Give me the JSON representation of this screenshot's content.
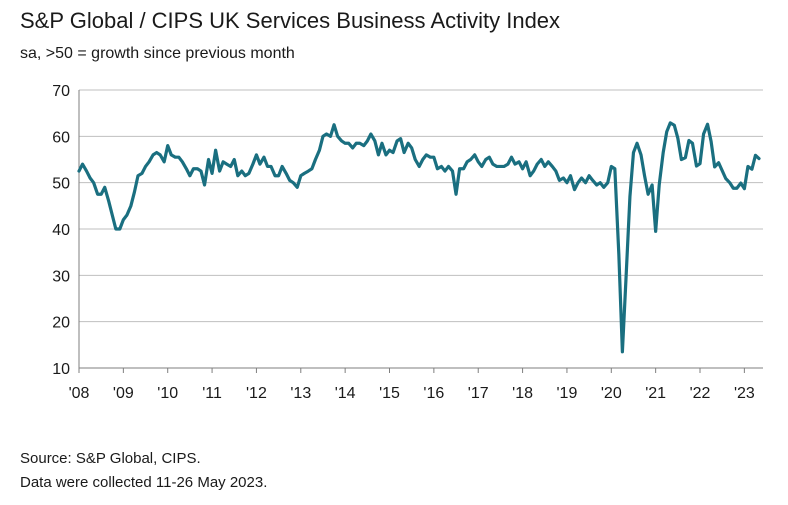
{
  "chart_data": {
    "type": "line",
    "title": "S&P Global / CIPS UK Services Business Activity Index",
    "subtitle": "sa, >50 = growth since previous month",
    "xlabel": "",
    "ylabel": "",
    "ylim": [
      10,
      70
    ],
    "yticks": [
      10,
      20,
      30,
      40,
      50,
      60,
      70
    ],
    "xlim": [
      2008.0,
      2023.42
    ],
    "xticks": [
      {
        "label": "'08",
        "value": 2008
      },
      {
        "label": "'09",
        "value": 2009
      },
      {
        "label": "'10",
        "value": 2010
      },
      {
        "label": "'11",
        "value": 2011
      },
      {
        "label": "'12",
        "value": 2012
      },
      {
        "label": "'13",
        "value": 2013
      },
      {
        "label": "'14",
        "value": 2014
      },
      {
        "label": "'15",
        "value": 2015
      },
      {
        "label": "'16",
        "value": 2016
      },
      {
        "label": "'17",
        "value": 2017
      },
      {
        "label": "'18",
        "value": 2018
      },
      {
        "label": "'19",
        "value": 2019
      },
      {
        "label": "'20",
        "value": 2020
      },
      {
        "label": "'21",
        "value": 2021
      },
      {
        "label": "'22",
        "value": 2022
      },
      {
        "label": "'23",
        "value": 2023
      }
    ],
    "grid": true,
    "series": [
      {
        "name": "UK Services Business Activity Index",
        "color": "#1a6f80",
        "points": [
          [
            2008.0,
            52.5
          ],
          [
            2008.08,
            54.0
          ],
          [
            2008.17,
            52.5
          ],
          [
            2008.25,
            51.0
          ],
          [
            2008.33,
            50.0
          ],
          [
            2008.42,
            47.5
          ],
          [
            2008.5,
            47.5
          ],
          [
            2008.58,
            49.0
          ],
          [
            2008.67,
            46.0
          ],
          [
            2008.75,
            43.0
          ],
          [
            2008.83,
            40.0
          ],
          [
            2008.92,
            40.0
          ],
          [
            2009.0,
            42.0
          ],
          [
            2009.08,
            43.0
          ],
          [
            2009.17,
            45.0
          ],
          [
            2009.25,
            48.0
          ],
          [
            2009.33,
            51.5
          ],
          [
            2009.42,
            52.0
          ],
          [
            2009.5,
            53.5
          ],
          [
            2009.58,
            54.5
          ],
          [
            2009.67,
            56.0
          ],
          [
            2009.75,
            56.5
          ],
          [
            2009.83,
            56.0
          ],
          [
            2009.92,
            54.5
          ],
          [
            2010.0,
            58.0
          ],
          [
            2010.08,
            56.0
          ],
          [
            2010.17,
            55.5
          ],
          [
            2010.25,
            55.5
          ],
          [
            2010.33,
            54.5
          ],
          [
            2010.42,
            53.0
          ],
          [
            2010.5,
            51.5
          ],
          [
            2010.58,
            53.0
          ],
          [
            2010.67,
            53.0
          ],
          [
            2010.75,
            52.5
          ],
          [
            2010.83,
            49.5
          ],
          [
            2010.92,
            55.0
          ],
          [
            2011.0,
            52.0
          ],
          [
            2011.08,
            57.0
          ],
          [
            2011.17,
            52.5
          ],
          [
            2011.25,
            54.5
          ],
          [
            2011.33,
            54.0
          ],
          [
            2011.42,
            53.5
          ],
          [
            2011.5,
            55.0
          ],
          [
            2011.58,
            51.5
          ],
          [
            2011.67,
            52.5
          ],
          [
            2011.75,
            51.5
          ],
          [
            2011.83,
            52.0
          ],
          [
            2011.92,
            54.0
          ],
          [
            2012.0,
            56.0
          ],
          [
            2012.08,
            54.0
          ],
          [
            2012.17,
            55.5
          ],
          [
            2012.25,
            53.5
          ],
          [
            2012.33,
            53.5
          ],
          [
            2012.42,
            51.5
          ],
          [
            2012.5,
            51.5
          ],
          [
            2012.58,
            53.5
          ],
          [
            2012.67,
            52.0
          ],
          [
            2012.75,
            50.5
          ],
          [
            2012.83,
            50.0
          ],
          [
            2012.92,
            49.0
          ],
          [
            2013.0,
            51.5
          ],
          [
            2013.08,
            52.0
          ],
          [
            2013.17,
            52.5
          ],
          [
            2013.25,
            53.0
          ],
          [
            2013.33,
            55.0
          ],
          [
            2013.42,
            57.0
          ],
          [
            2013.5,
            60.0
          ],
          [
            2013.58,
            60.5
          ],
          [
            2013.67,
            60.0
          ],
          [
            2013.75,
            62.5
          ],
          [
            2013.83,
            60.0
          ],
          [
            2013.92,
            59.0
          ],
          [
            2014.0,
            58.5
          ],
          [
            2014.08,
            58.5
          ],
          [
            2014.17,
            57.5
          ],
          [
            2014.25,
            58.5
          ],
          [
            2014.33,
            58.5
          ],
          [
            2014.42,
            58.0
          ],
          [
            2014.5,
            59.0
          ],
          [
            2014.58,
            60.5
          ],
          [
            2014.67,
            59.0
          ],
          [
            2014.75,
            56.0
          ],
          [
            2014.83,
            58.5
          ],
          [
            2014.92,
            56.0
          ],
          [
            2015.0,
            57.0
          ],
          [
            2015.08,
            56.5
          ],
          [
            2015.17,
            59.0
          ],
          [
            2015.25,
            59.5
          ],
          [
            2015.33,
            56.5
          ],
          [
            2015.42,
            58.5
          ],
          [
            2015.5,
            57.5
          ],
          [
            2015.58,
            55.0
          ],
          [
            2015.67,
            53.5
          ],
          [
            2015.75,
            55.0
          ],
          [
            2015.83,
            56.0
          ],
          [
            2015.92,
            55.5
          ],
          [
            2016.0,
            55.5
          ],
          [
            2016.08,
            53.0
          ],
          [
            2016.17,
            53.5
          ],
          [
            2016.25,
            52.5
          ],
          [
            2016.33,
            53.5
          ],
          [
            2016.42,
            52.5
          ],
          [
            2016.5,
            47.5
          ],
          [
            2016.58,
            53.0
          ],
          [
            2016.67,
            53.0
          ],
          [
            2016.75,
            54.5
          ],
          [
            2016.83,
            55.0
          ],
          [
            2016.92,
            56.0
          ],
          [
            2017.0,
            54.5
          ],
          [
            2017.08,
            53.5
          ],
          [
            2017.17,
            55.0
          ],
          [
            2017.25,
            55.5
          ],
          [
            2017.33,
            54.0
          ],
          [
            2017.42,
            53.5
          ],
          [
            2017.5,
            53.5
          ],
          [
            2017.58,
            53.5
          ],
          [
            2017.67,
            54.0
          ],
          [
            2017.75,
            55.5
          ],
          [
            2017.83,
            54.0
          ],
          [
            2017.92,
            54.5
          ],
          [
            2018.0,
            53.0
          ],
          [
            2018.08,
            54.5
          ],
          [
            2018.17,
            51.5
          ],
          [
            2018.25,
            52.5
          ],
          [
            2018.33,
            54.0
          ],
          [
            2018.42,
            55.0
          ],
          [
            2018.5,
            53.5
          ],
          [
            2018.58,
            54.5
          ],
          [
            2018.67,
            53.5
          ],
          [
            2018.75,
            52.5
          ],
          [
            2018.83,
            50.5
          ],
          [
            2018.92,
            51.0
          ],
          [
            2019.0,
            50.0
          ],
          [
            2019.08,
            51.5
          ],
          [
            2019.17,
            48.5
          ],
          [
            2019.25,
            50.0
          ],
          [
            2019.33,
            51.0
          ],
          [
            2019.42,
            50.0
          ],
          [
            2019.5,
            51.5
          ],
          [
            2019.58,
            50.5
          ],
          [
            2019.67,
            49.5
          ],
          [
            2019.75,
            50.0
          ],
          [
            2019.83,
            49.0
          ],
          [
            2019.92,
            50.0
          ],
          [
            2020.0,
            53.5
          ],
          [
            2020.08,
            53.0
          ],
          [
            2020.17,
            34.5
          ],
          [
            2020.25,
            13.5
          ],
          [
            2020.33,
            29.0
          ],
          [
            2020.42,
            47.0
          ],
          [
            2020.5,
            56.5
          ],
          [
            2020.58,
            58.5
          ],
          [
            2020.67,
            56.0
          ],
          [
            2020.75,
            51.5
          ],
          [
            2020.83,
            47.5
          ],
          [
            2020.92,
            49.5
          ],
          [
            2021.0,
            39.5
          ],
          [
            2021.08,
            49.5
          ],
          [
            2021.17,
            56.5
          ],
          [
            2021.25,
            61.0
          ],
          [
            2021.33,
            62.9
          ],
          [
            2021.42,
            62.4
          ],
          [
            2021.5,
            59.6
          ],
          [
            2021.58,
            55.0
          ],
          [
            2021.67,
            55.4
          ],
          [
            2021.75,
            59.1
          ],
          [
            2021.83,
            58.5
          ],
          [
            2021.92,
            53.6
          ],
          [
            2022.0,
            54.1
          ],
          [
            2022.08,
            60.5
          ],
          [
            2022.17,
            62.6
          ],
          [
            2022.25,
            58.9
          ],
          [
            2022.33,
            53.4
          ],
          [
            2022.42,
            54.3
          ],
          [
            2022.5,
            52.6
          ],
          [
            2022.58,
            50.9
          ],
          [
            2022.67,
            50.0
          ],
          [
            2022.75,
            48.8
          ],
          [
            2022.83,
            48.8
          ],
          [
            2022.92,
            49.9
          ],
          [
            2023.0,
            48.7
          ],
          [
            2023.08,
            53.5
          ],
          [
            2023.17,
            52.9
          ],
          [
            2023.25,
            55.9
          ],
          [
            2023.33,
            55.2
          ]
        ]
      }
    ]
  },
  "footer": {
    "source": "Source: S&P Global, CIPS.",
    "collected": "Data were collected 11-26 May 2023."
  }
}
